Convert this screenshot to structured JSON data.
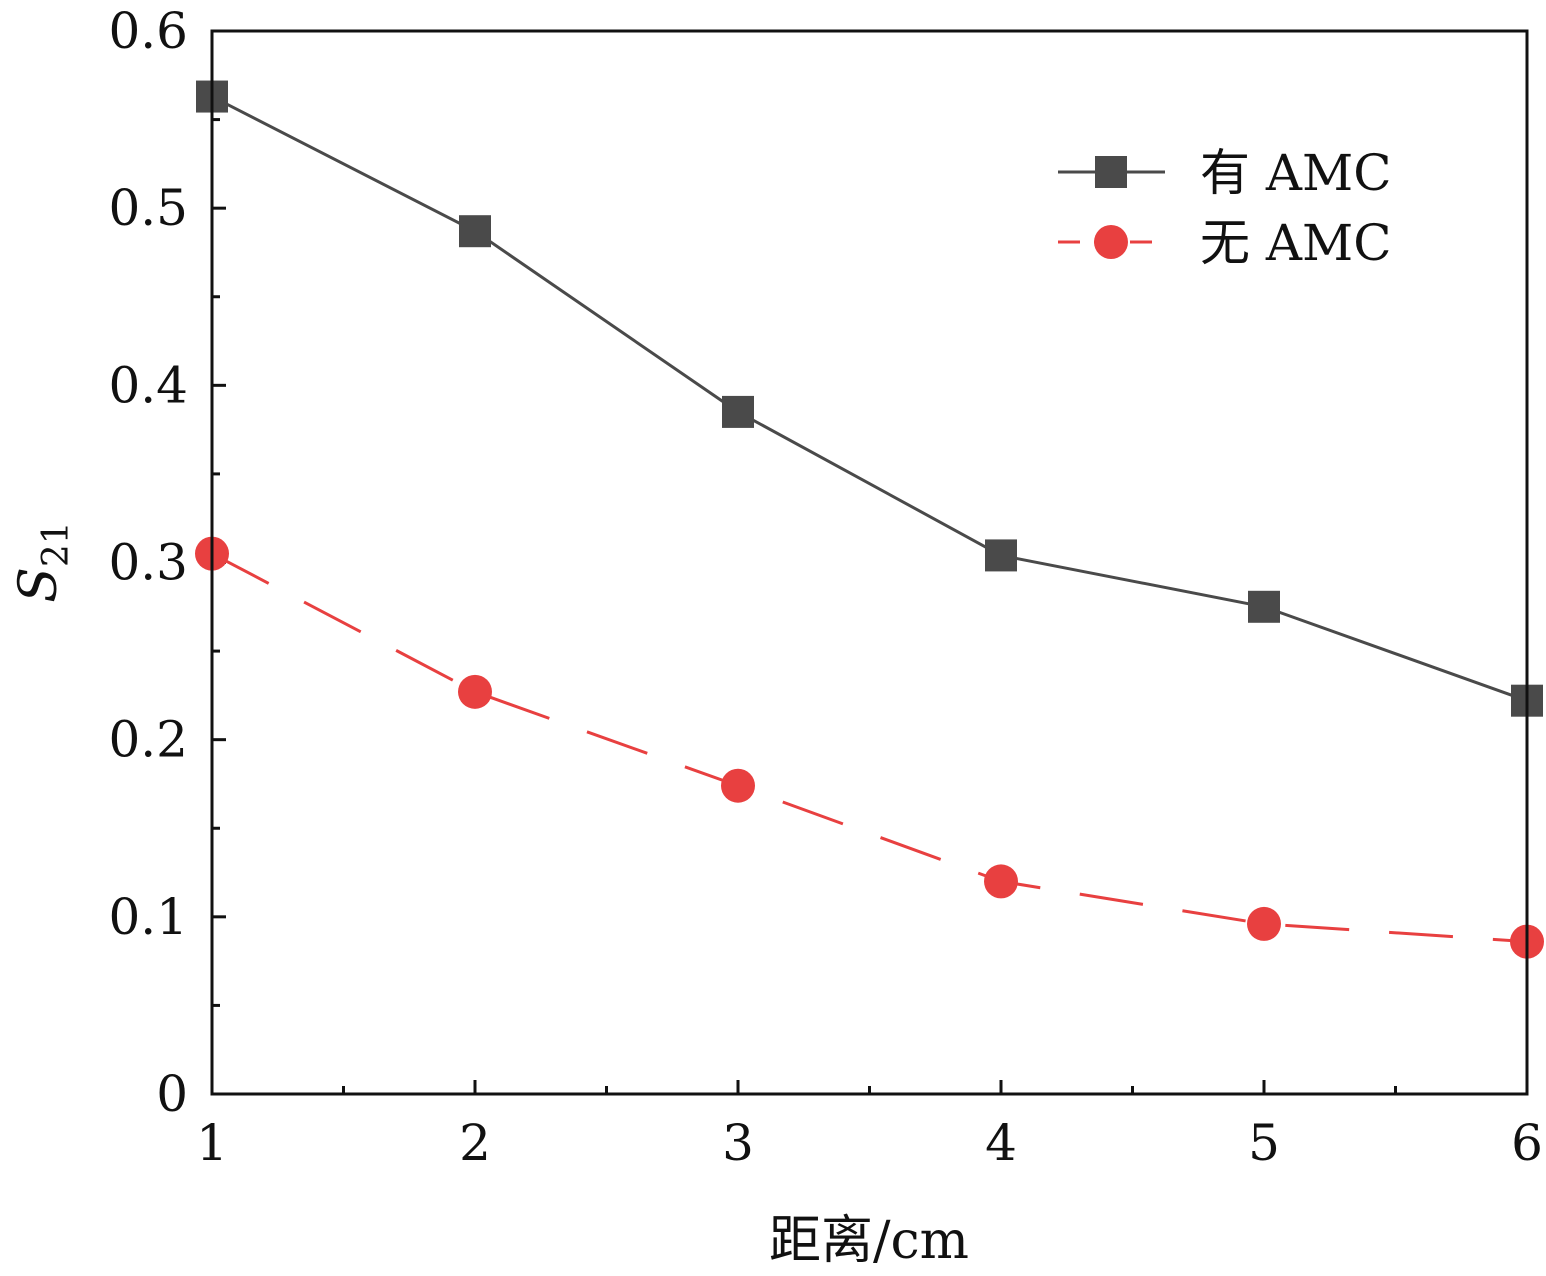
{
  "chart_data": {
    "type": "line",
    "x": [
      1,
      2,
      3,
      4,
      5,
      6
    ],
    "series": [
      {
        "name": "有 AMC",
        "values": [
          0.563,
          0.487,
          0.385,
          0.304,
          0.275,
          0.222
        ],
        "color": "#4a4a4a",
        "marker": "square",
        "line_style": "solid"
      },
      {
        "name": "无 AMC",
        "values": [
          0.305,
          0.227,
          0.174,
          0.12,
          0.096,
          0.086
        ],
        "color": "#e84040",
        "marker": "circle",
        "line_style": "dashed"
      }
    ],
    "xlabel": "距离/cm",
    "ylabel": {
      "main": "S",
      "sub": "21"
    },
    "xlim": [
      1,
      6
    ],
    "ylim": [
      0,
      0.6
    ],
    "xticks": [
      "1",
      "2",
      "3",
      "4",
      "5",
      "6"
    ],
    "yticks": [
      "0",
      "0.1",
      "0.2",
      "0.3",
      "0.4",
      "0.5",
      "0.6"
    ],
    "grid": false,
    "legend_position": "top-right"
  }
}
